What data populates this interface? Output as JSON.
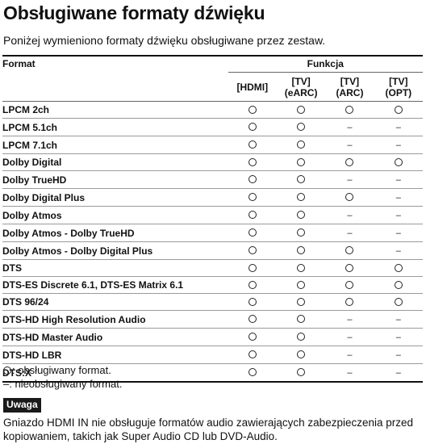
{
  "title": "Obsługiwane formaty dźwięku",
  "intro": "Poniżej wymieniono formaty dźwięku obsługiwane przez zestaw.",
  "table": {
    "header_format": "Format",
    "header_function": "Funkcja",
    "columns": [
      {
        "line1": "[HDMI]",
        "line2": ""
      },
      {
        "line1": "[TV]",
        "line2": "(eARC)"
      },
      {
        "line1": "[TV]",
        "line2": "(ARC)"
      },
      {
        "line1": "[TV]",
        "line2": "(OPT)"
      }
    ],
    "rows": [
      {
        "name": "LPCM 2ch",
        "support": [
          "○",
          "○",
          "○",
          "○"
        ]
      },
      {
        "name": "LPCM 5.1ch",
        "support": [
          "○",
          "○",
          "–",
          "–"
        ]
      },
      {
        "name": "LPCM 7.1ch",
        "support": [
          "○",
          "○",
          "–",
          "–"
        ]
      },
      {
        "name": "Dolby Digital",
        "support": [
          "○",
          "○",
          "○",
          "○"
        ]
      },
      {
        "name": "Dolby TrueHD",
        "support": [
          "○",
          "○",
          "–",
          "–"
        ]
      },
      {
        "name": "Dolby Digital Plus",
        "support": [
          "○",
          "○",
          "○",
          "–"
        ]
      },
      {
        "name": "Dolby Atmos",
        "support": [
          "○",
          "○",
          "–",
          "–"
        ]
      },
      {
        "name": "Dolby Atmos - Dolby TrueHD",
        "support": [
          "○",
          "○",
          "–",
          "–"
        ]
      },
      {
        "name": "Dolby Atmos - Dolby Digital Plus",
        "support": [
          "○",
          "○",
          "○",
          "–"
        ]
      },
      {
        "name": "DTS",
        "support": [
          "○",
          "○",
          "○",
          "○"
        ]
      },
      {
        "name": "DTS-ES Discrete 6.1, DTS-ES Matrix 6.1",
        "support": [
          "○",
          "○",
          "○",
          "○"
        ]
      },
      {
        "name": "DTS 96/24",
        "support": [
          "○",
          "○",
          "○",
          "○"
        ]
      },
      {
        "name": "DTS-HD High Resolution Audio",
        "support": [
          "○",
          "○",
          "–",
          "–"
        ]
      },
      {
        "name": "DTS-HD Master Audio",
        "support": [
          "○",
          "○",
          "–",
          "–"
        ]
      },
      {
        "name": "DTS-HD LBR",
        "support": [
          "○",
          "○",
          "–",
          "–"
        ]
      },
      {
        "name": "DTS:X",
        "support": [
          "○",
          "○",
          "–",
          "–"
        ]
      }
    ]
  },
  "legend": {
    "supported_symbol": "○",
    "supported_text": ": obsługiwany format.",
    "unsupported_symbol": "–",
    "unsupported_text": ": nieobsługiwany format."
  },
  "note": {
    "label": "Uwaga",
    "text": "Gniazdo HDMI IN nie obsługuje formatów audio zawierających zabezpieczenia przed kopiowaniem, takich jak Super Audio CD lub DVD-Audio."
  }
}
